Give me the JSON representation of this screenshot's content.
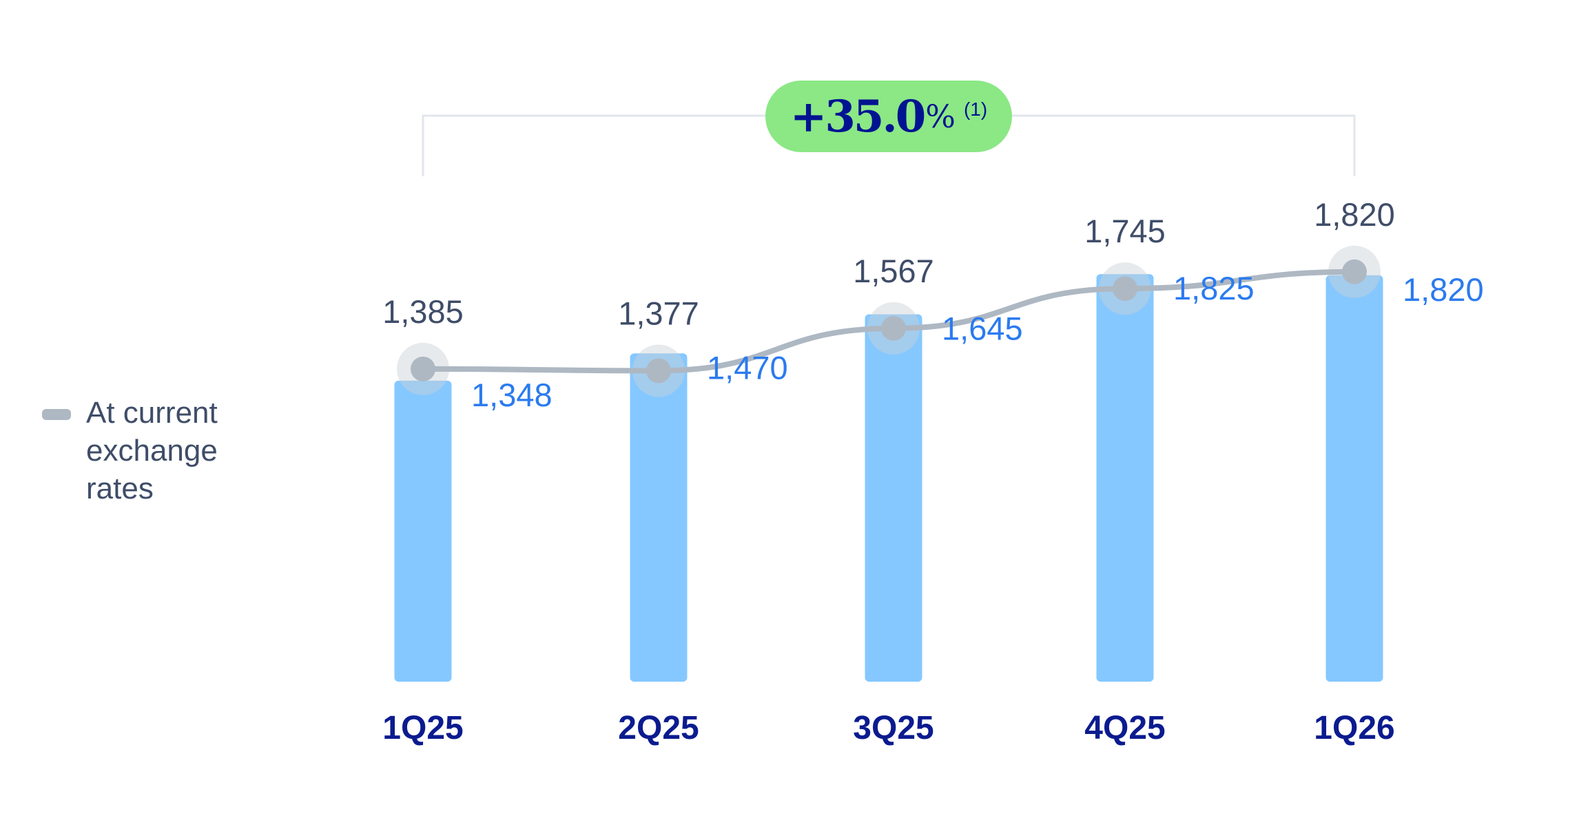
{
  "chart_data": {
    "type": "bar+line",
    "categories": [
      "1Q25",
      "2Q25",
      "3Q25",
      "4Q25",
      "1Q26"
    ],
    "series": [
      {
        "type": "bar",
        "values": [
          1348,
          1470,
          1645,
          1825,
          1820
        ]
      },
      {
        "type": "line",
        "name": "At current exchange rates",
        "values": [
          1385,
          1377,
          1567,
          1745,
          1820
        ]
      }
    ],
    "data_labels_bar": [
      "1,348",
      "1,470",
      "1,645",
      "1,825",
      "1,820"
    ],
    "data_labels_line": [
      "1,385",
      "1,377",
      "1,567",
      "1,745",
      "1,820"
    ],
    "grid": false,
    "legend_position": "left",
    "annotation": {
      "value": "+35.0",
      "unit": "%",
      "note": "(1)"
    }
  },
  "legend": {
    "label": "At current exchange rates"
  },
  "colors": {
    "bar": "#85c8ff",
    "line": "#aeb8c3",
    "bar_label": "#2b7bef",
    "line_label": "#3f4d68",
    "category": "#0b1b8f",
    "pill": "#8be885",
    "bracket": "#e2e6ec"
  }
}
